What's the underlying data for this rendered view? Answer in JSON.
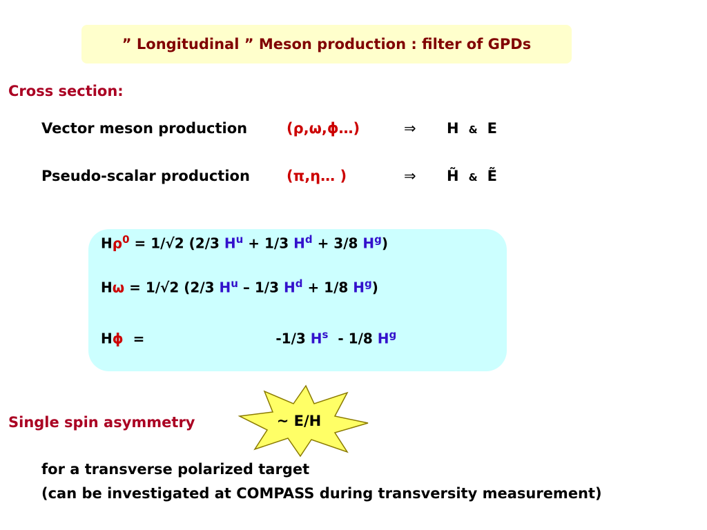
{
  "title": "” Longitudinal ” Meson production : filter of GPDs",
  "cross_section": {
    "heading": "Cross section:",
    "rows": [
      {
        "label": "Vector meson production",
        "particles": "(ρ,ω,ϕ…)",
        "arrow": "⇒",
        "result": [
          "H",
          "&",
          "E"
        ]
      },
      {
        "label": "Pseudo-scalar production",
        "particles": "(π,η… )",
        "arrow": "⇒",
        "result": [
          "H̃",
          "&",
          "Ẽ"
        ]
      }
    ]
  },
  "equations": [
    [
      {
        "t": "H"
      },
      {
        "t": "ρ",
        "c": "#cc0000"
      },
      {
        "t": "0",
        "sup": true,
        "c": "#cc0000"
      },
      {
        "t": " = 1/√2 (2/3 "
      },
      {
        "t": "H",
        "c": "#3311cc"
      },
      {
        "t": "u",
        "sup": true,
        "c": "#3311cc"
      },
      {
        "t": " + 1/3 "
      },
      {
        "t": "H",
        "c": "#3311cc"
      },
      {
        "t": "d",
        "sup": true,
        "c": "#3311cc"
      },
      {
        "t": " + 3/8 "
      },
      {
        "t": "H",
        "c": "#3311cc"
      },
      {
        "t": "g",
        "sup": true,
        "c": "#3311cc"
      },
      {
        "t": ")"
      }
    ],
    [
      {
        "t": "H"
      },
      {
        "t": "ω",
        "c": "#cc0000"
      },
      {
        "t": " = 1/√2 (2/3 "
      },
      {
        "t": "H",
        "c": "#3311cc"
      },
      {
        "t": "u",
        "sup": true,
        "c": "#3311cc"
      },
      {
        "t": " – 1/3 "
      },
      {
        "t": "H",
        "c": "#3311cc"
      },
      {
        "t": "d",
        "sup": true,
        "c": "#3311cc"
      },
      {
        "t": " + 1/8 "
      },
      {
        "t": "H",
        "c": "#3311cc"
      },
      {
        "t": "g",
        "sup": true,
        "c": "#3311cc"
      },
      {
        "t": ")"
      }
    ],
    [
      {
        "t": "H"
      },
      {
        "t": "ϕ",
        "c": "#cc0000"
      },
      {
        "t": "  =",
        "gap": true
      },
      {
        "t": "-1/3 "
      },
      {
        "t": "H",
        "c": "#3311cc"
      },
      {
        "t": "s",
        "sup": true,
        "c": "#3311cc"
      },
      {
        "t": "  - 1/8 "
      },
      {
        "t": "H",
        "c": "#3311cc"
      },
      {
        "t": "g",
        "sup": true,
        "c": "#3311cc"
      }
    ]
  ],
  "single_spin": {
    "heading": "Single spin asymmetry",
    "star": "~ E/H",
    "lines": [
      "for a transverse polarized target",
      "(can be investigated at COMPASS during transversity measurement)"
    ]
  }
}
